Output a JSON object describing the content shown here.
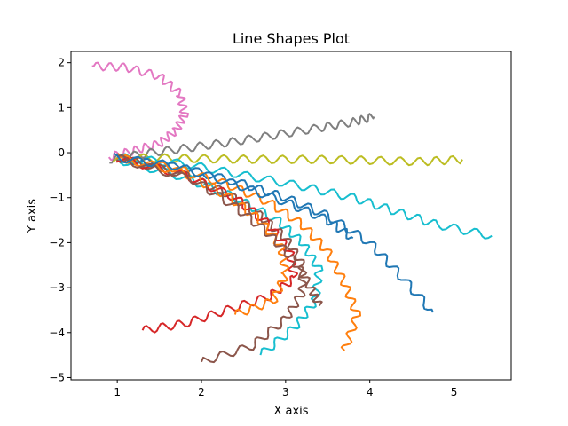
{
  "chart_data": {
    "type": "line",
    "title": "Line Shapes Plot",
    "xlabel": "X axis",
    "ylabel": "Y axis",
    "xlim": [
      0.45,
      5.68
    ],
    "ylim": [
      -5.05,
      2.25
    ],
    "x_ticks": [
      1,
      2,
      3,
      4,
      5
    ],
    "y_ticks": [
      2,
      1,
      0,
      -1,
      -2,
      -3,
      -4,
      -5
    ],
    "grid": false,
    "legend": false,
    "wiggle_note": "each series is a noisy spiral-like curve; points below are sampled along each trace",
    "series": [
      {
        "color": "#e377c2",
        "points": [
          [
            0.9,
            -0.1
          ],
          [
            1.2,
            0.05
          ],
          [
            1.5,
            0.2
          ],
          [
            1.7,
            0.5
          ],
          [
            1.8,
            0.85
          ],
          [
            1.75,
            1.3
          ],
          [
            1.5,
            1.7
          ],
          [
            1.1,
            1.9
          ],
          [
            0.7,
            1.92
          ]
        ]
      },
      {
        "color": "#7f7f7f",
        "points": [
          [
            0.9,
            -0.15
          ],
          [
            1.4,
            0.0
          ],
          [
            1.9,
            0.12
          ],
          [
            2.4,
            0.25
          ],
          [
            2.9,
            0.4
          ],
          [
            3.4,
            0.55
          ],
          [
            3.8,
            0.68
          ],
          [
            4.05,
            0.8
          ]
        ]
      },
      {
        "color": "#bcbd22",
        "points": [
          [
            0.95,
            -0.12
          ],
          [
            1.6,
            -0.12
          ],
          [
            2.2,
            -0.14
          ],
          [
            2.8,
            -0.15
          ],
          [
            3.4,
            -0.15
          ],
          [
            4.0,
            -0.17
          ],
          [
            4.6,
            -0.2
          ],
          [
            5.1,
            -0.15
          ]
        ]
      },
      {
        "color": "#17becf",
        "points": [
          [
            1.0,
            -0.1
          ],
          [
            1.8,
            -0.25
          ],
          [
            2.5,
            -0.5
          ],
          [
            3.2,
            -0.75
          ],
          [
            3.8,
            -1.0
          ],
          [
            4.3,
            -1.3
          ],
          [
            4.8,
            -1.6
          ],
          [
            5.45,
            -1.85
          ]
        ]
      },
      {
        "color": "#1f77b4",
        "points": [
          [
            1.0,
            -0.12
          ],
          [
            1.8,
            -0.35
          ],
          [
            2.5,
            -0.7
          ],
          [
            3.0,
            -1.0
          ],
          [
            3.5,
            -1.4
          ],
          [
            4.0,
            -2.0
          ],
          [
            4.35,
            -2.7
          ],
          [
            4.75,
            -3.55
          ]
        ]
      },
      {
        "color": "#ff7f0e",
        "points": [
          [
            1.0,
            -0.1
          ],
          [
            1.7,
            -0.35
          ],
          [
            2.3,
            -0.7
          ],
          [
            2.8,
            -1.1
          ],
          [
            3.2,
            -1.6
          ],
          [
            3.5,
            -2.2
          ],
          [
            3.7,
            -2.9
          ],
          [
            3.85,
            -3.6
          ],
          [
            3.7,
            -4.4
          ]
        ]
      },
      {
        "color": "#17becf",
        "points": [
          [
            1.0,
            -0.15
          ],
          [
            1.8,
            -0.55
          ],
          [
            2.4,
            -1.0
          ],
          [
            2.9,
            -1.5
          ],
          [
            3.2,
            -2.0
          ],
          [
            3.4,
            -2.6
          ],
          [
            3.35,
            -3.3
          ],
          [
            3.1,
            -3.9
          ],
          [
            2.7,
            -4.5
          ]
        ]
      },
      {
        "color": "#8c564b",
        "points": [
          [
            1.0,
            -0.1
          ],
          [
            1.8,
            -0.5
          ],
          [
            2.3,
            -0.9
          ],
          [
            2.7,
            -1.4
          ],
          [
            3.0,
            -1.9
          ],
          [
            3.2,
            -2.5
          ],
          [
            3.2,
            -3.1
          ],
          [
            3.0,
            -3.7
          ],
          [
            2.6,
            -4.3
          ],
          [
            2.0,
            -4.65
          ]
        ]
      },
      {
        "color": "#d62728",
        "points": [
          [
            1.0,
            -0.12
          ],
          [
            1.8,
            -0.5
          ],
          [
            2.4,
            -1.0
          ],
          [
            2.8,
            -1.6
          ],
          [
            3.05,
            -2.2
          ],
          [
            3.1,
            -2.8
          ],
          [
            2.8,
            -3.2
          ],
          [
            2.3,
            -3.5
          ],
          [
            1.8,
            -3.8
          ],
          [
            1.3,
            -3.95
          ]
        ]
      },
      {
        "color": "#ff7f0e",
        "points": [
          [
            1.0,
            -0.1
          ],
          [
            1.8,
            -0.45
          ],
          [
            2.3,
            -0.95
          ],
          [
            2.7,
            -1.5
          ],
          [
            2.95,
            -2.1
          ],
          [
            3.0,
            -2.7
          ],
          [
            2.85,
            -3.3
          ],
          [
            2.4,
            -3.6
          ]
        ]
      },
      {
        "color": "#8c564b",
        "points": [
          [
            1.0,
            -0.12
          ],
          [
            1.9,
            -0.6
          ],
          [
            2.4,
            -1.2
          ],
          [
            2.8,
            -1.8
          ],
          [
            3.1,
            -2.4
          ],
          [
            3.3,
            -3.0
          ],
          [
            3.4,
            -3.4
          ]
        ]
      },
      {
        "color": "#1f77b4",
        "points": [
          [
            0.95,
            -0.1
          ],
          [
            1.7,
            -0.3
          ],
          [
            2.4,
            -0.7
          ],
          [
            3.0,
            -1.1
          ],
          [
            3.5,
            -1.5
          ],
          [
            3.8,
            -1.9
          ]
        ]
      }
    ]
  }
}
